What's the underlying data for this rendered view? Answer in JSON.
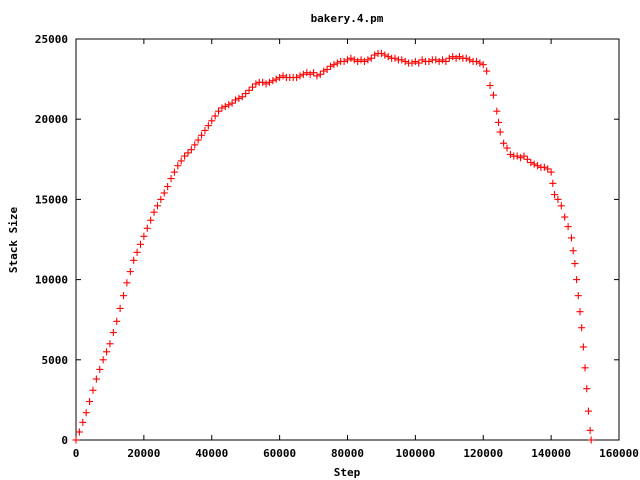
{
  "chart_data": {
    "type": "scatter",
    "title": "bakery.4.pm",
    "xlabel": "Step",
    "ylabel": "Stack Size",
    "xlim": [
      0,
      160000
    ],
    "ylim": [
      0,
      25000
    ],
    "xticks": [
      0,
      20000,
      40000,
      60000,
      80000,
      100000,
      120000,
      140000,
      160000
    ],
    "yticks": [
      0,
      5000,
      10000,
      15000,
      20000,
      25000
    ],
    "grid": false,
    "legend": "none",
    "marker": "plus",
    "color": "#ff0000",
    "series": [
      {
        "points": [
          [
            0,
            0
          ],
          [
            1000,
            500
          ],
          [
            2000,
            1100
          ],
          [
            3000,
            1700
          ],
          [
            4000,
            2400
          ],
          [
            5000,
            3100
          ],
          [
            6000,
            3800
          ],
          [
            7000,
            4400
          ],
          [
            8000,
            5000
          ],
          [
            9000,
            5500
          ],
          [
            10000,
            6000
          ],
          [
            11000,
            6700
          ],
          [
            12000,
            7400
          ],
          [
            13000,
            8200
          ],
          [
            14000,
            9000
          ],
          [
            15000,
            9800
          ],
          [
            16000,
            10500
          ],
          [
            17000,
            11200
          ],
          [
            18000,
            11700
          ],
          [
            19000,
            12200
          ],
          [
            20000,
            12700
          ],
          [
            21000,
            13200
          ],
          [
            22000,
            13700
          ],
          [
            23000,
            14200
          ],
          [
            24000,
            14600
          ],
          [
            25000,
            15000
          ],
          [
            26000,
            15400
          ],
          [
            27000,
            15800
          ],
          [
            28000,
            16300
          ],
          [
            29000,
            16700
          ],
          [
            30000,
            17100
          ],
          [
            31000,
            17400
          ],
          [
            32000,
            17700
          ],
          [
            33000,
            17900
          ],
          [
            34000,
            18100
          ],
          [
            35000,
            18400
          ],
          [
            36000,
            18700
          ],
          [
            37000,
            19000
          ],
          [
            38000,
            19300
          ],
          [
            39000,
            19600
          ],
          [
            40000,
            19900
          ],
          [
            41000,
            20200
          ],
          [
            42000,
            20500
          ],
          [
            43000,
            20700
          ],
          [
            44000,
            20800
          ],
          [
            45000,
            20900
          ],
          [
            46000,
            21000
          ],
          [
            47000,
            21200
          ],
          [
            48000,
            21300
          ],
          [
            49000,
            21400
          ],
          [
            50000,
            21600
          ],
          [
            51000,
            21800
          ],
          [
            52000,
            22000
          ],
          [
            53000,
            22200
          ],
          [
            54000,
            22300
          ],
          [
            55000,
            22300
          ],
          [
            56000,
            22200
          ],
          [
            57000,
            22300
          ],
          [
            58000,
            22400
          ],
          [
            59000,
            22500
          ],
          [
            60000,
            22600
          ],
          [
            61000,
            22700
          ],
          [
            62000,
            22600
          ],
          [
            63000,
            22600
          ],
          [
            64000,
            22600
          ],
          [
            65000,
            22600
          ],
          [
            66000,
            22700
          ],
          [
            67000,
            22800
          ],
          [
            68000,
            22900
          ],
          [
            69000,
            22800
          ],
          [
            70000,
            22900
          ],
          [
            71000,
            22700
          ],
          [
            72000,
            22800
          ],
          [
            73000,
            23000
          ],
          [
            74000,
            23100
          ],
          [
            75000,
            23300
          ],
          [
            76000,
            23400
          ],
          [
            77000,
            23500
          ],
          [
            78000,
            23600
          ],
          [
            79000,
            23600
          ],
          [
            80000,
            23700
          ],
          [
            81000,
            23800
          ],
          [
            82000,
            23700
          ],
          [
            83000,
            23600
          ],
          [
            84000,
            23700
          ],
          [
            85000,
            23600
          ],
          [
            86000,
            23700
          ],
          [
            87000,
            23800
          ],
          [
            88000,
            24000
          ],
          [
            89000,
            24100
          ],
          [
            90000,
            24100
          ],
          [
            91000,
            24000
          ],
          [
            92000,
            23900
          ],
          [
            93000,
            23800
          ],
          [
            94000,
            23800
          ],
          [
            95000,
            23700
          ],
          [
            96000,
            23700
          ],
          [
            97000,
            23600
          ],
          [
            98000,
            23500
          ],
          [
            99000,
            23500
          ],
          [
            100000,
            23600
          ],
          [
            101000,
            23500
          ],
          [
            102000,
            23700
          ],
          [
            103000,
            23600
          ],
          [
            104000,
            23600
          ],
          [
            105000,
            23700
          ],
          [
            106000,
            23700
          ],
          [
            107000,
            23600
          ],
          [
            108000,
            23700
          ],
          [
            109000,
            23600
          ],
          [
            110000,
            23800
          ],
          [
            111000,
            23900
          ],
          [
            112000,
            23800
          ],
          [
            113000,
            23900
          ],
          [
            114000,
            23800
          ],
          [
            115000,
            23800
          ],
          [
            116000,
            23700
          ],
          [
            117000,
            23600
          ],
          [
            118000,
            23600
          ],
          [
            119000,
            23500
          ],
          [
            120000,
            23400
          ],
          [
            121000,
            23000
          ],
          [
            122000,
            22100
          ],
          [
            123000,
            21500
          ],
          [
            124000,
            20500
          ],
          [
            124500,
            19800
          ],
          [
            125000,
            19200
          ],
          [
            126000,
            18500
          ],
          [
            127000,
            18200
          ],
          [
            128000,
            17800
          ],
          [
            129000,
            17700
          ],
          [
            130000,
            17700
          ],
          [
            131000,
            17600
          ],
          [
            132000,
            17700
          ],
          [
            133000,
            17500
          ],
          [
            134000,
            17300
          ],
          [
            135000,
            17200
          ],
          [
            136000,
            17100
          ],
          [
            137000,
            17000
          ],
          [
            138000,
            17000
          ],
          [
            139000,
            16900
          ],
          [
            140000,
            16700
          ],
          [
            140500,
            16000
          ],
          [
            141000,
            15300
          ],
          [
            142000,
            15000
          ],
          [
            143000,
            14600
          ],
          [
            144000,
            13900
          ],
          [
            145000,
            13300
          ],
          [
            146000,
            12600
          ],
          [
            146500,
            11800
          ],
          [
            147000,
            11000
          ],
          [
            147500,
            10000
          ],
          [
            148000,
            9000
          ],
          [
            148500,
            8000
          ],
          [
            149000,
            7000
          ],
          [
            149500,
            5800
          ],
          [
            150000,
            4500
          ],
          [
            150500,
            3200
          ],
          [
            151000,
            1800
          ],
          [
            151500,
            600
          ],
          [
            151800,
            0
          ]
        ]
      }
    ]
  }
}
